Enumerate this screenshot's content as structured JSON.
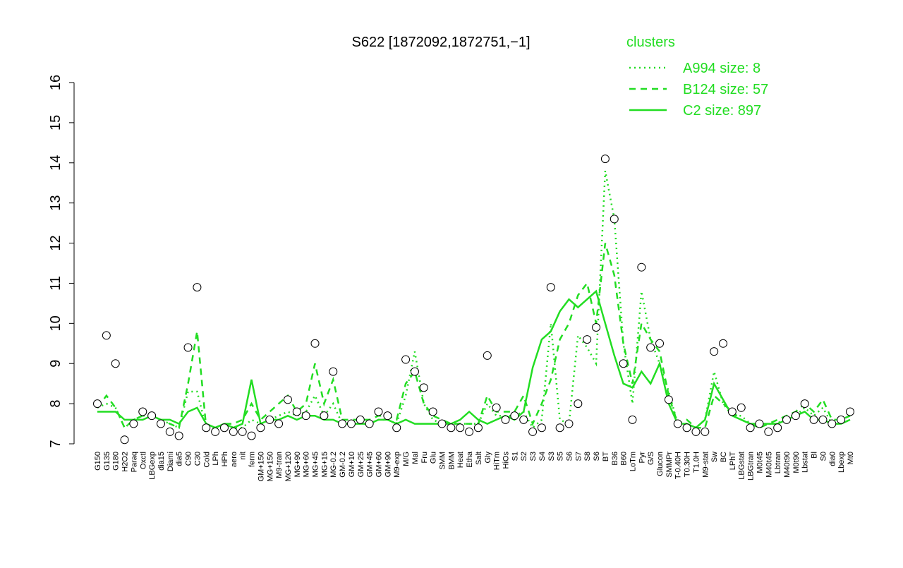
{
  "chart_data": {
    "type": "line",
    "title": "S622 [1872092,1872751,−1]",
    "categories": [
      "G150",
      "G135",
      "G180",
      "H2O2",
      "Paraq",
      "Oxctl",
      "LBGexp",
      "dia15",
      "Diami",
      "dia5",
      "C90",
      "C30",
      "Cold",
      "LPh",
      "HPh",
      "aero",
      "nit",
      "ferm",
      "GM+150",
      "MG+150",
      "M9-tran",
      "MG+120",
      "MG+90",
      "MG+60",
      "MG+45",
      "MG+15",
      "MG-0.2",
      "GM-0.2",
      "GM+10",
      "GM+25",
      "GM+45",
      "GM+60",
      "GM+90",
      "M9-exp",
      "M/G",
      "Mal",
      "Fru",
      "Glu",
      "SMM",
      "BMM",
      "Heat",
      "Etha",
      "Salt",
      "Gly",
      "HiTm",
      "HiOs",
      "S1",
      "S2",
      "S3",
      "S4",
      "S3",
      "S5",
      "S6",
      "S7",
      "S8",
      "S6",
      "BT",
      "B36",
      "B60",
      "LoTm",
      "Pyr",
      "G/S",
      "Glucon",
      "SMMPr",
      "T-0.40H",
      "T0.30H",
      "T1.0H",
      "M9-stat",
      "Sw",
      "BC",
      "LPhT",
      "LBGstat",
      "LBGtran",
      "M0t45",
      "M40t45",
      "Lbtran",
      "M40t90",
      "M0t90",
      "Lbstat",
      "Bl",
      "S0",
      "dia0",
      "Lbexp",
      "Mt0"
    ],
    "legend_title": "clusters",
    "series": [
      {
        "name": "A994 size: 8",
        "color": "#22dd22",
        "dash": "2,5",
        "values": [
          7.9,
          8.0,
          7.9,
          7.4,
          7.6,
          7.7,
          7.7,
          7.6,
          7.5,
          7.4,
          8.3,
          8.3,
          7.4,
          7.4,
          7.5,
          7.4,
          7.4,
          7.6,
          7.5,
          7.6,
          7.7,
          7.8,
          7.7,
          7.8,
          8.2,
          7.7,
          8.0,
          7.5,
          7.5,
          7.5,
          7.5,
          7.6,
          7.6,
          7.5,
          8.2,
          9.3,
          8.0,
          7.6,
          7.5,
          7.5,
          7.5,
          7.5,
          7.5,
          8.0,
          7.7,
          7.7,
          7.7,
          7.8,
          7.4,
          7.6,
          10.0,
          7.6,
          7.5,
          9.7,
          9.4,
          9.0,
          13.8,
          12.6,
          9.5,
          8.0,
          10.8,
          9.6,
          9.0,
          8.3,
          7.5,
          7.5,
          7.4,
          7.6,
          8.8,
          8.0,
          7.7,
          7.7,
          7.5,
          7.4,
          7.5,
          7.5,
          7.7,
          7.7,
          7.9,
          7.7,
          7.9,
          7.5,
          7.5,
          7.6
        ]
      },
      {
        "name": "B124 size: 57",
        "color": "#22dd22",
        "dash": "9,7",
        "values": [
          7.9,
          8.2,
          7.9,
          7.4,
          7.6,
          7.7,
          7.7,
          7.6,
          7.5,
          7.4,
          8.5,
          9.8,
          7.4,
          7.4,
          7.5,
          7.5,
          7.6,
          8.0,
          7.6,
          7.8,
          8.0,
          8.2,
          7.8,
          8.0,
          9.0,
          8.0,
          8.6,
          7.6,
          7.6,
          7.6,
          7.6,
          7.7,
          7.7,
          7.6,
          8.5,
          8.8,
          8.0,
          7.7,
          7.6,
          7.5,
          7.5,
          7.5,
          7.5,
          8.2,
          7.8,
          7.8,
          7.8,
          8.2,
          7.5,
          8.0,
          8.6,
          9.6,
          10.0,
          10.7,
          11.0,
          10.0,
          12.0,
          11.2,
          9.5,
          8.5,
          10.0,
          9.6,
          9.3,
          8.2,
          7.5,
          7.6,
          7.4,
          7.4,
          8.2,
          8.0,
          7.8,
          7.6,
          7.5,
          7.4,
          7.5,
          7.6,
          7.7,
          7.8,
          8.0,
          7.8,
          8.1,
          7.6,
          7.6,
          7.7
        ]
      },
      {
        "name": "C2 size: 897",
        "color": "#22dd22",
        "dash": "",
        "values": [
          7.8,
          7.8,
          7.8,
          7.6,
          7.6,
          7.6,
          7.7,
          7.6,
          7.6,
          7.5,
          7.8,
          7.9,
          7.5,
          7.4,
          7.5,
          7.4,
          7.5,
          8.6,
          7.5,
          7.6,
          7.6,
          7.7,
          7.6,
          7.7,
          7.7,
          7.6,
          7.6,
          7.5,
          7.5,
          7.5,
          7.5,
          7.6,
          7.6,
          7.5,
          7.6,
          7.5,
          7.5,
          7.5,
          7.5,
          7.5,
          7.6,
          7.8,
          7.6,
          7.5,
          7.6,
          7.7,
          7.6,
          7.8,
          8.9,
          9.6,
          9.8,
          10.3,
          10.6,
          10.4,
          10.6,
          10.8,
          10.0,
          9.2,
          8.5,
          8.4,
          8.8,
          8.5,
          9.0,
          8.0,
          7.5,
          7.5,
          7.4,
          7.6,
          8.5,
          8.1,
          7.7,
          7.6,
          7.5,
          7.5,
          7.5,
          7.5,
          7.6,
          7.7,
          7.8,
          7.6,
          7.6,
          7.5,
          7.5,
          7.6
        ]
      }
    ],
    "points": [
      8.0,
      9.7,
      9.0,
      7.1,
      7.5,
      7.8,
      7.7,
      7.5,
      7.3,
      7.2,
      9.4,
      10.9,
      7.4,
      7.3,
      7.4,
      7.3,
      7.3,
      7.2,
      7.4,
      7.6,
      7.5,
      8.1,
      7.8,
      7.7,
      9.5,
      7.7,
      8.8,
      7.5,
      7.5,
      7.6,
      7.5,
      7.8,
      7.7,
      7.4,
      9.1,
      8.8,
      8.4,
      7.8,
      7.5,
      7.4,
      7.4,
      7.3,
      7.4,
      9.2,
      7.9,
      7.6,
      7.7,
      7.6,
      7.3,
      7.4,
      10.9,
      7.4,
      7.5,
      8.0,
      9.6,
      9.9,
      14.1,
      12.6,
      9.0,
      7.6,
      11.4,
      9.4,
      9.5,
      8.1,
      7.5,
      7.4,
      7.3,
      7.3,
      9.3,
      9.5,
      7.8,
      7.9,
      7.4,
      7.5,
      7.3,
      7.4,
      7.6,
      7.7,
      8.0,
      7.6,
      7.6,
      7.5,
      7.6,
      7.8
    ],
    "ylim": [
      7,
      16
    ],
    "yticks": [
      7,
      8,
      9,
      10,
      11,
      12,
      13,
      14,
      15,
      16
    ]
  }
}
